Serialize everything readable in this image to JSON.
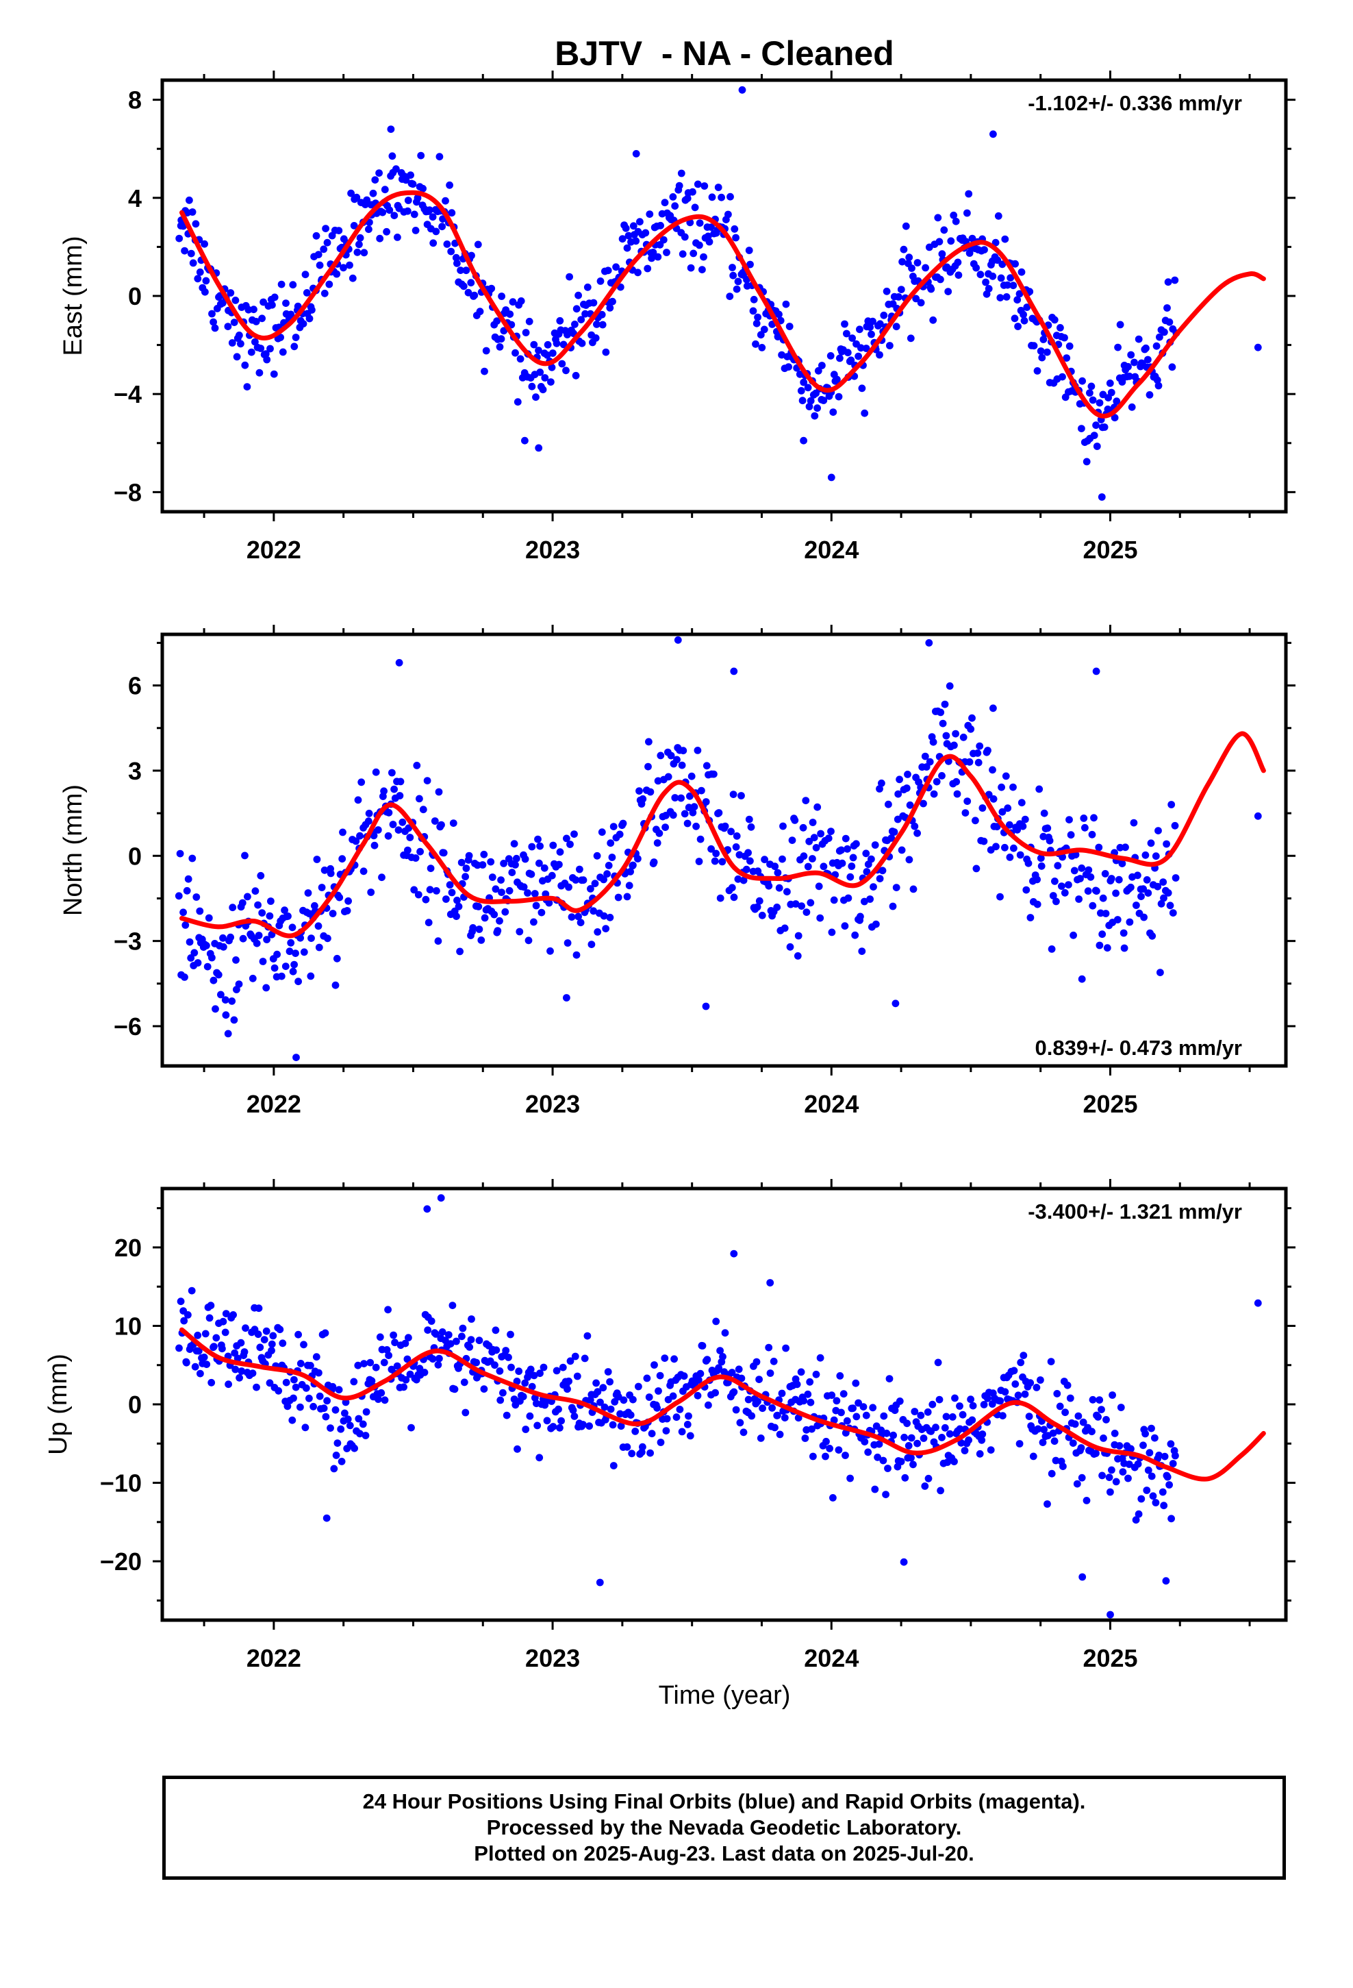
{
  "chart_data": {
    "title": "BJTV  - NA - Cleaned",
    "xlabel": "Time (year)",
    "x_ticks": [
      "2022",
      "2023",
      "2024",
      "2025"
    ],
    "xlim": [
      2021.6,
      2025.63
    ],
    "panels": [
      {
        "type": "scatter",
        "ylabel": "East (mm)",
        "ylim": [
          -8.8,
          8.8
        ],
        "y_ticks": [
          "8",
          "4",
          "0",
          "−4",
          "−8"
        ],
        "y_tick_values": [
          8,
          4,
          0,
          -4,
          -8
        ],
        "rate_text": "-1.102+/- 0.336 mm/yr",
        "rate_position": "top-right",
        "model": {
          "x": [
            2021.67,
            2021.8,
            2021.93,
            2022.05,
            2022.2,
            2022.35,
            2022.47,
            2022.6,
            2022.75,
            2022.95,
            2023.1,
            2023.3,
            2023.47,
            2023.6,
            2023.75,
            2023.95,
            2024.1,
            2024.3,
            2024.48,
            2024.6,
            2024.75,
            2024.95,
            2025.1,
            2025.25,
            2025.4,
            2025.5,
            2025.55
          ],
          "y": [
            3.4,
            0.5,
            -1.6,
            -1.2,
            1.0,
            3.4,
            4.2,
            3.6,
            0.3,
            -2.7,
            -1.5,
            1.5,
            3.1,
            2.8,
            0.0,
            -3.7,
            -2.8,
            0.2,
            2.0,
            1.8,
            -1.0,
            -4.8,
            -3.6,
            -1.4,
            0.4,
            0.9,
            0.7
          ]
        },
        "anchors": [
          [
            2021.67,
            3.2
          ],
          [
            2021.8,
            0.1
          ],
          [
            2021.93,
            -1.9
          ],
          [
            2022.05,
            -1.0
          ],
          [
            2022.2,
            1.2
          ],
          [
            2022.35,
            3.5
          ],
          [
            2022.47,
            4.4
          ],
          [
            2022.6,
            3.3
          ],
          [
            2022.75,
            -0.2
          ],
          [
            2022.95,
            -3.1
          ],
          [
            2023.1,
            -1.2
          ],
          [
            2023.3,
            1.8
          ],
          [
            2023.47,
            3.2
          ],
          [
            2023.6,
            2.5
          ],
          [
            2023.75,
            -0.6
          ],
          [
            2023.95,
            -3.9
          ],
          [
            2024.1,
            -2.5
          ],
          [
            2024.3,
            0.5
          ],
          [
            2024.48,
            2.2
          ],
          [
            2024.6,
            1.2
          ],
          [
            2024.75,
            -1.6
          ],
          [
            2024.95,
            -5.0
          ],
          [
            2025.1,
            -3.0
          ],
          [
            2025.25,
            -1.0
          ]
        ],
        "noise": 1.1,
        "outliers": [
          [
            2023.68,
            8.4
          ],
          [
            2024.58,
            6.6
          ],
          [
            2024.97,
            -8.2
          ],
          [
            2025.53,
            -2.1
          ],
          [
            2022.95,
            -6.2
          ],
          [
            2024.0,
            -7.4
          ],
          [
            2022.9,
            -5.9
          ],
          [
            2023.9,
            -5.9
          ],
          [
            2022.42,
            6.8
          ],
          [
            2023.3,
            5.8
          ]
        ]
      },
      {
        "type": "scatter",
        "ylabel": "North (mm)",
        "ylim": [
          -7.4,
          7.8
        ],
        "y_ticks": [
          "6",
          "3",
          "0",
          "−3",
          "−6"
        ],
        "y_tick_values": [
          6,
          3,
          0,
          -3,
          -6
        ],
        "rate_text": "0.839+/- 0.473 mm/yr",
        "rate_position": "bottom-right",
        "model": {
          "x": [
            2021.67,
            2021.8,
            2021.93,
            2022.07,
            2022.2,
            2022.32,
            2022.42,
            2022.55,
            2022.7,
            2022.85,
            2023.0,
            2023.1,
            2023.25,
            2023.4,
            2023.5,
            2023.65,
            2023.8,
            2023.95,
            2024.1,
            2024.25,
            2024.4,
            2024.5,
            2024.62,
            2024.75,
            2024.9,
            2025.05,
            2025.2,
            2025.35,
            2025.47,
            2025.55
          ],
          "y": [
            -2.2,
            -2.5,
            -2.3,
            -2.8,
            -1.5,
            0.4,
            1.8,
            0.4,
            -1.4,
            -1.6,
            -1.5,
            -1.9,
            -0.5,
            2.2,
            2.3,
            -0.4,
            -0.8,
            -0.6,
            -1.0,
            0.8,
            3.4,
            2.8,
            1.0,
            0.1,
            0.2,
            -0.1,
            -0.1,
            2.5,
            4.3,
            3.0
          ]
        },
        "anchors": [
          [
            2021.67,
            -2.2
          ],
          [
            2021.8,
            -4.2
          ],
          [
            2021.93,
            -2.6
          ],
          [
            2022.07,
            -3.0
          ],
          [
            2022.2,
            -1.5
          ],
          [
            2022.32,
            0.5
          ],
          [
            2022.42,
            1.8
          ],
          [
            2022.55,
            0.2
          ],
          [
            2022.7,
            -1.4
          ],
          [
            2022.85,
            -1.6
          ],
          [
            2023.0,
            -1.3
          ],
          [
            2023.1,
            -1.8
          ],
          [
            2023.25,
            -0.2
          ],
          [
            2023.4,
            2.4
          ],
          [
            2023.5,
            2.0
          ],
          [
            2023.65,
            -0.4
          ],
          [
            2023.8,
            -0.8
          ],
          [
            2023.95,
            -0.4
          ],
          [
            2024.1,
            -1.0
          ],
          [
            2024.25,
            1.0
          ],
          [
            2024.4,
            3.6
          ],
          [
            2024.5,
            2.6
          ],
          [
            2024.62,
            1.0
          ],
          [
            2024.75,
            0.0
          ],
          [
            2024.9,
            -0.6
          ],
          [
            2025.05,
            -1.0
          ],
          [
            2025.2,
            -0.8
          ]
        ],
        "noise": 1.5,
        "outliers": [
          [
            2022.08,
            -7.1
          ],
          [
            2022.45,
            6.8
          ],
          [
            2023.45,
            7.6
          ],
          [
            2024.35,
            7.5
          ],
          [
            2024.95,
            6.5
          ],
          [
            2025.53,
            1.4
          ],
          [
            2023.55,
            -5.3
          ],
          [
            2024.23,
            -5.2
          ],
          [
            2024.58,
            5.2
          ],
          [
            2023.65,
            6.5
          ],
          [
            2023.05,
            -5.0
          ]
        ]
      },
      {
        "type": "scatter",
        "ylabel": "Up (mm)",
        "ylim": [
          -27.5,
          27.5
        ],
        "y_ticks": [
          "20",
          "10",
          "0",
          "−10",
          "−20"
        ],
        "y_tick_values": [
          20,
          10,
          0,
          -10,
          -20
        ],
        "rate_text": "-3.400+/- 1.321 mm/yr",
        "rate_position": "top-right",
        "model": {
          "x": [
            2021.67,
            2021.8,
            2021.95,
            2022.1,
            2022.25,
            2022.4,
            2022.58,
            2022.75,
            2022.95,
            2023.1,
            2023.3,
            2023.45,
            2023.6,
            2023.75,
            2023.95,
            2024.15,
            2024.3,
            2024.45,
            2024.65,
            2024.8,
            2024.95,
            2025.1,
            2025.2,
            2025.35,
            2025.47,
            2025.55
          ],
          "y": [
            9.5,
            6.0,
            4.8,
            3.8,
            0.8,
            3.0,
            6.8,
            4.0,
            1.3,
            0.2,
            -2.5,
            0.3,
            3.5,
            1.0,
            -2.0,
            -4.0,
            -6.2,
            -4.5,
            0.2,
            -2.5,
            -5.5,
            -6.5,
            -8.0,
            -9.5,
            -6.5,
            -3.7
          ]
        },
        "anchors": [
          [
            2021.67,
            9.0
          ],
          [
            2021.8,
            6.5
          ],
          [
            2021.95,
            6.0
          ],
          [
            2022.1,
            4.5
          ],
          [
            2022.25,
            -1.5
          ],
          [
            2022.4,
            3.5
          ],
          [
            2022.58,
            6.0
          ],
          [
            2022.75,
            5.0
          ],
          [
            2022.95,
            0.5
          ],
          [
            2023.1,
            1.0
          ],
          [
            2023.3,
            -2.5
          ],
          [
            2023.45,
            1.0
          ],
          [
            2023.6,
            4.0
          ],
          [
            2023.75,
            0.5
          ],
          [
            2023.95,
            -2.0
          ],
          [
            2024.15,
            -4.5
          ],
          [
            2024.3,
            -6.0
          ],
          [
            2024.45,
            -3.5
          ],
          [
            2024.65,
            1.0
          ],
          [
            2024.8,
            -2.5
          ],
          [
            2024.95,
            -5.0
          ],
          [
            2025.1,
            -6.5
          ],
          [
            2025.22,
            -9.0
          ]
        ],
        "noise": 4.2,
        "outliers": [
          [
            2022.55,
            24.9
          ],
          [
            2022.6,
            26.3
          ],
          [
            2023.65,
            19.2
          ],
          [
            2023.17,
            -22.7
          ],
          [
            2025.0,
            -26.8
          ],
          [
            2025.53,
            12.9
          ],
          [
            2022.19,
            -14.5
          ],
          [
            2024.26,
            -20.1
          ],
          [
            2024.9,
            -22.0
          ],
          [
            2023.78,
            15.5
          ],
          [
            2025.2,
            -22.5
          ]
        ]
      }
    ]
  },
  "caption": {
    "line1": "24 Hour Positions Using Final Orbits (blue) and Rapid Orbits (magenta).",
    "line2": "Processed by the Nevada Geodetic Laboratory.",
    "line3": "Plotted on 2025-Aug-23. Last data on 2025-Jul-20."
  },
  "colors": {
    "points": "#0000ff",
    "model": "#ff0000",
    "frame": "#000000"
  }
}
